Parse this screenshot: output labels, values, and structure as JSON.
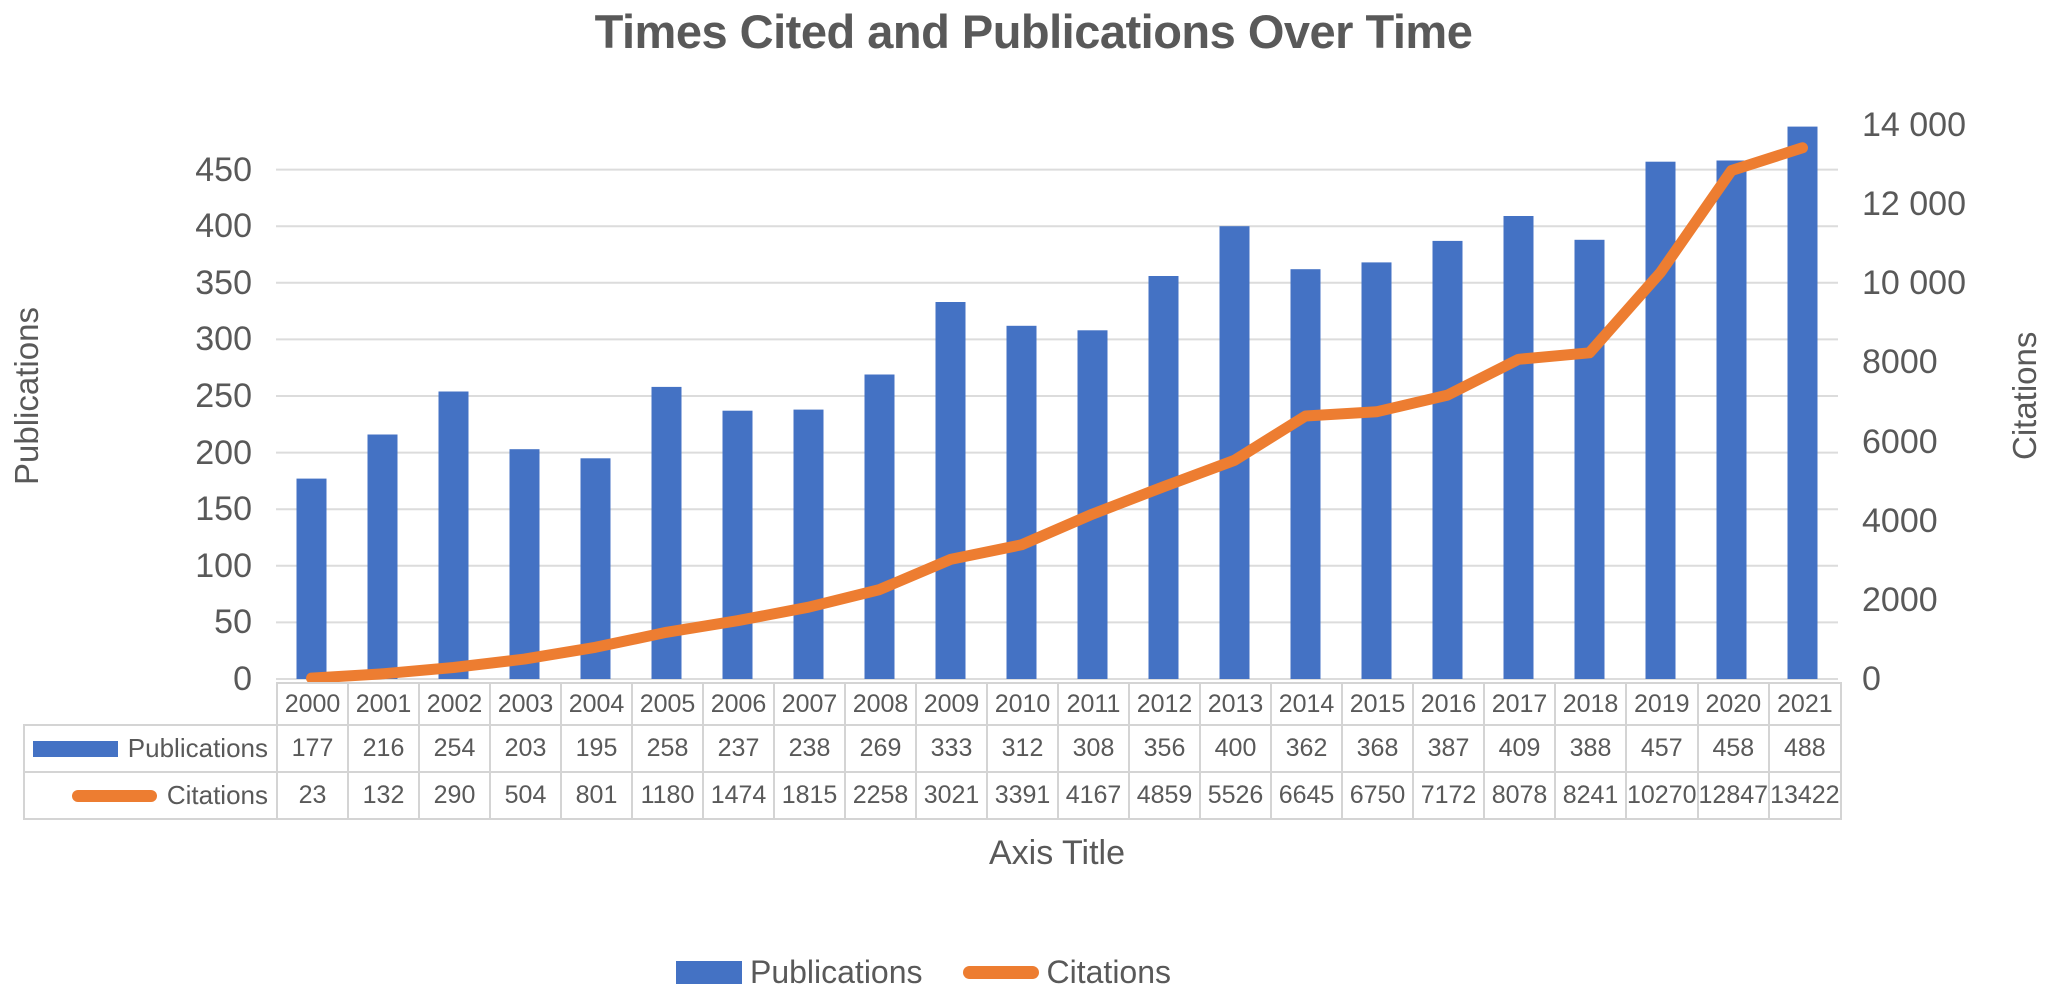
{
  "title": "Times Cited and Publications Over Time",
  "left_axis": {
    "title": "Publications",
    "tick_values": [
      0,
      50,
      100,
      150,
      200,
      250,
      300,
      350,
      400,
      450
    ],
    "tick_labels": [
      "0",
      "50",
      "100",
      "150",
      "200",
      "250",
      "300",
      "350",
      "400",
      "450"
    ]
  },
  "right_axis": {
    "title": "Citations",
    "tick_values": [
      0,
      2000,
      4000,
      6000,
      8000,
      10000,
      12000,
      14000
    ],
    "tick_labels": [
      "0",
      "2000",
      "4000",
      "6000",
      "8000",
      "10 000",
      "12 000",
      "14 000"
    ]
  },
  "x_axis": {
    "title": "Axis Title"
  },
  "legend": {
    "items": [
      {
        "label": "Publications",
        "swatch": "bar"
      },
      {
        "label": "Citations",
        "swatch": "line"
      }
    ]
  },
  "table": {
    "row_labels": [
      "Publications",
      "Citations"
    ]
  },
  "colors": {
    "bar": "#4472C4",
    "line": "#ED7D31",
    "text": "#595959",
    "grid": "#DCDCDC",
    "table_border": "#D4D4D4"
  },
  "chart_data": {
    "type": "bar+line combo, dual axis",
    "title": "Times Cited and Publications Over Time",
    "xlabel": "Axis Title",
    "ylabel_left": "Publications",
    "ylabel_right": "Citations",
    "categories": [
      "2000",
      "2001",
      "2002",
      "2003",
      "2004",
      "2005",
      "2006",
      "2007",
      "2008",
      "2009",
      "2010",
      "2011",
      "2012",
      "2013",
      "2014",
      "2015",
      "2016",
      "2017",
      "2018",
      "2019",
      "2020",
      "2021"
    ],
    "series": [
      {
        "name": "Publications",
        "type": "bar",
        "axis": "left",
        "color": "#4472C4",
        "values": [
          177,
          216,
          254,
          203,
          195,
          258,
          237,
          238,
          269,
          333,
          312,
          308,
          356,
          400,
          362,
          368,
          387,
          409,
          388,
          457,
          458,
          488
        ]
      },
      {
        "name": "Citations",
        "type": "line",
        "axis": "right",
        "color": "#ED7D31",
        "values": [
          23,
          132,
          290,
          504,
          801,
          1180,
          1474,
          1815,
          2258,
          3021,
          3391,
          4167,
          4859,
          5526,
          6645,
          6750,
          7172,
          8078,
          8241,
          10270,
          12847,
          13422
        ]
      }
    ],
    "left_ylim": [
      0,
      500
    ],
    "right_ylim": [
      0,
      14300
    ],
    "grid": "horizontal",
    "legend_position": "bottom",
    "data_table_shown": true
  }
}
